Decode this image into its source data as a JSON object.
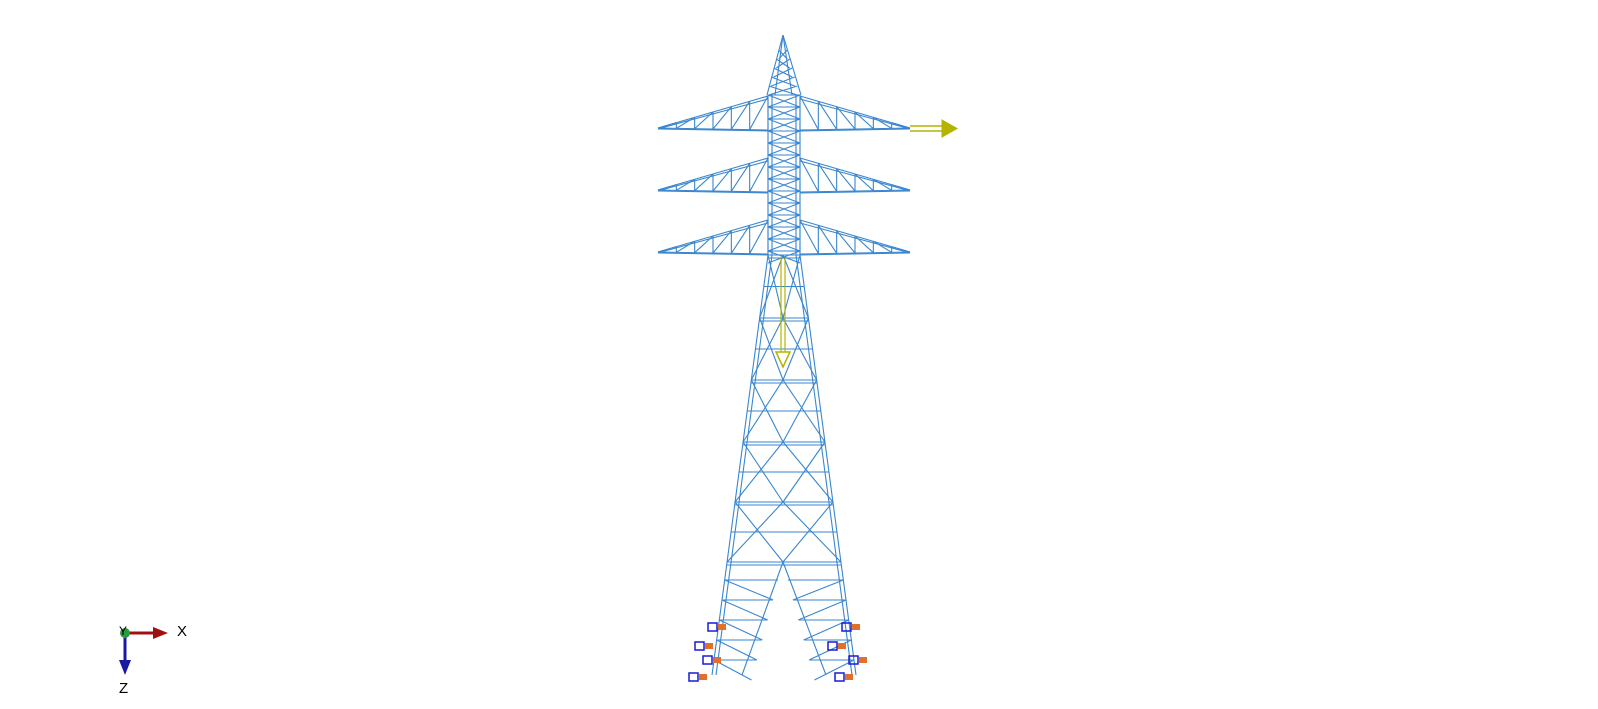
{
  "axes": {
    "x": "X",
    "y": "Y",
    "z": "Z"
  }
}
